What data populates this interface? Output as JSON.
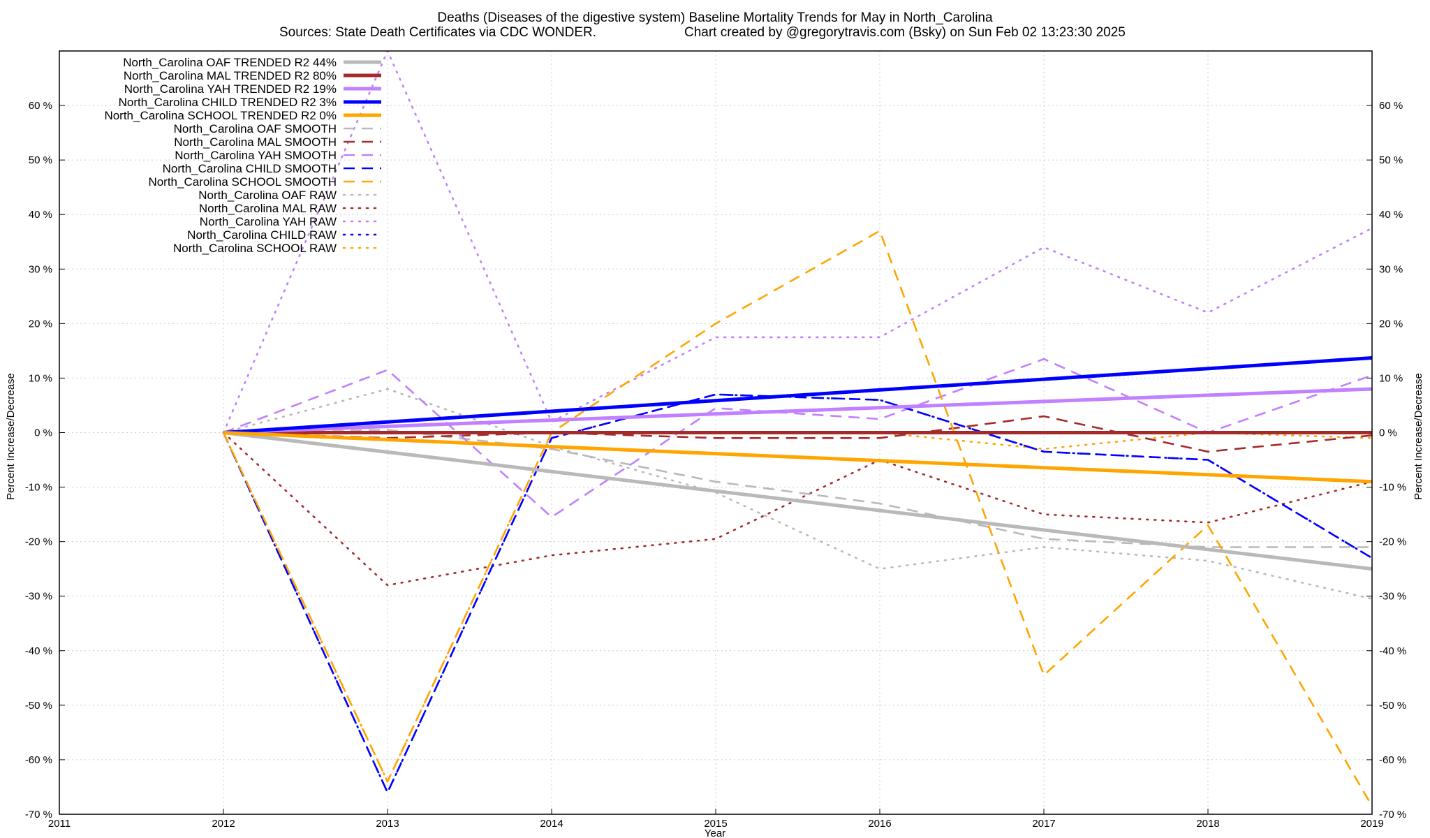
{
  "chart_data": {
    "type": "line",
    "title": "Deaths (Diseases of the digestive system)  Baseline Mortality Trends for May in North_Carolina",
    "subtitle_left": "Sources: State Death Certificates via CDC WONDER.",
    "subtitle_right": "Chart created by @gregorytravis.com (Bsky) on Sun Feb 02 13:23:30 2025",
    "xlabel": "Year",
    "ylabel_left": "Percent Increase/Decrease",
    "ylabel_right": "Percent Increase/Decrease",
    "xlim": [
      2011,
      2019
    ],
    "ylim": [
      -70,
      70
    ],
    "x_ticks": [
      2011,
      2012,
      2013,
      2014,
      2015,
      2016,
      2017,
      2018,
      2019
    ],
    "y_ticks": [
      -70,
      -60,
      -50,
      -40,
      -30,
      -20,
      -10,
      0,
      10,
      20,
      30,
      40,
      50,
      60
    ],
    "y_tick_suffix": " %",
    "grid": true,
    "legend_position": "top-left",
    "colors": {
      "oaf": "#b9b9b9",
      "mal": "#a52a2a",
      "yah": "#c080ff",
      "child": "#0000ff",
      "school": "#ffa500"
    },
    "series": [
      {
        "name": "North_Carolina OAF TRENDED R2  44%",
        "group": "oaf",
        "style": "trend",
        "x": [
          2012,
          2019
        ],
        "y": [
          0,
          -25
        ]
      },
      {
        "name": "North_Carolina MAL TRENDED R2  80%",
        "group": "mal",
        "style": "trend",
        "x": [
          2012,
          2019
        ],
        "y": [
          0,
          0
        ]
      },
      {
        "name": "North_Carolina YAH TRENDED R2  19%",
        "group": "yah",
        "style": "trend",
        "x": [
          2012,
          2019
        ],
        "y": [
          0,
          8
        ]
      },
      {
        "name": "North_Carolina CHILD TRENDED R2   3%",
        "group": "child",
        "style": "trend",
        "x": [
          2012,
          2019
        ],
        "y": [
          0,
          13.7
        ]
      },
      {
        "name": "North_Carolina SCHOOL TRENDED R2   0%",
        "group": "school",
        "style": "trend",
        "x": [
          2012,
          2019
        ],
        "y": [
          0,
          -9
        ]
      },
      {
        "name": "North_Carolina OAF SMOOTH",
        "group": "oaf",
        "style": "smooth",
        "x": [
          2012,
          2013,
          2014,
          2015,
          2016,
          2017,
          2018,
          2019
        ],
        "y": [
          0,
          0.5,
          -3,
          -9,
          -13,
          -19.5,
          -21,
          -21
        ]
      },
      {
        "name": "North_Carolina MAL SMOOTH",
        "group": "mal",
        "style": "smooth",
        "x": [
          2012,
          2013,
          2014,
          2015,
          2016,
          2017,
          2018,
          2019
        ],
        "y": [
          0,
          -1,
          0,
          -1,
          -1,
          3,
          -3.5,
          -0.5
        ]
      },
      {
        "name": "North_Carolina YAH SMOOTH",
        "group": "yah",
        "style": "smooth",
        "x": [
          2012,
          2013,
          2014,
          2015,
          2016,
          2017,
          2018,
          2019
        ],
        "y": [
          0,
          11.5,
          -15.5,
          4.5,
          2.5,
          13.5,
          0,
          10.5
        ]
      },
      {
        "name": "North_Carolina CHILD SMOOTH",
        "group": "child",
        "style": "smooth",
        "x": [
          2012,
          2013,
          2014,
          2015,
          2016,
          2017,
          2018,
          2019
        ],
        "y": [
          0,
          -66,
          -1,
          7,
          6,
          -3.5,
          -5,
          -23
        ]
      },
      {
        "name": "North_Carolina SCHOOL SMOOTH",
        "group": "school",
        "style": "smooth",
        "x": [
          2012,
          2013,
          2014,
          2015,
          2016,
          2017,
          2018,
          2019
        ],
        "y": [
          0,
          -64,
          0,
          20,
          37,
          -44.5,
          -17,
          -68.5
        ]
      },
      {
        "name": "North_Carolina OAF RAW",
        "group": "oaf",
        "style": "raw",
        "x": [
          2012,
          2013,
          2014,
          2015,
          2016,
          2017,
          2018,
          2019
        ],
        "y": [
          0,
          8,
          -2.5,
          -11,
          -25,
          -21,
          -23.5,
          -30.5
        ]
      },
      {
        "name": "North_Carolina MAL RAW",
        "group": "mal",
        "style": "raw",
        "x": [
          2012,
          2013,
          2014,
          2015,
          2016,
          2017,
          2018,
          2019
        ],
        "y": [
          0,
          -28,
          -22.5,
          -19.5,
          -5,
          -15,
          -16.5,
          -9
        ]
      },
      {
        "name": "North_Carolina YAH RAW",
        "group": "yah",
        "style": "raw",
        "x": [
          2012,
          2013,
          2014,
          2015,
          2016,
          2017,
          2018,
          2019
        ],
        "y": [
          0,
          70,
          2,
          17.5,
          17.5,
          34,
          22,
          37.5
        ]
      },
      {
        "name": "North_Carolina CHILD RAW",
        "group": "child",
        "style": "raw",
        "x": [
          2012,
          2013,
          2014,
          2015,
          2016,
          2017,
          2018,
          2019
        ],
        "y": [
          0,
          -66,
          -1,
          7,
          6,
          -3.5,
          -5,
          -23
        ]
      },
      {
        "name": "North_Carolina SCHOOL RAW",
        "group": "school",
        "style": "raw",
        "x": [
          2012,
          2013,
          2014,
          2015,
          2016,
          2017,
          2018,
          2019
        ],
        "y": [
          0,
          -64,
          0,
          0,
          0,
          -3,
          0,
          -1
        ]
      }
    ]
  }
}
